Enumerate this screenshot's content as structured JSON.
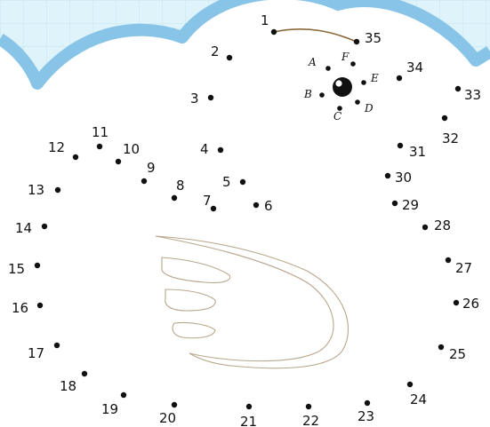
{
  "colors": {
    "grid_background": "#dff3fb",
    "grid_line": "#c3e6f3",
    "cloud_border": "#88c4e7",
    "dot": "#111111",
    "connect_line": "#8a6a3c",
    "outline": "#b8a78c"
  },
  "icons": {
    "eye": "eye-icon",
    "wing": "wing-outline-icon"
  },
  "puzzle": {
    "dots": [
      {
        "label": "1"
      },
      {
        "label": "2"
      },
      {
        "label": "3"
      },
      {
        "label": "4"
      },
      {
        "label": "5"
      },
      {
        "label": "6"
      },
      {
        "label": "7"
      },
      {
        "label": "8"
      },
      {
        "label": "9"
      },
      {
        "label": "10"
      },
      {
        "label": "11"
      },
      {
        "label": "12"
      },
      {
        "label": "13"
      },
      {
        "label": "14"
      },
      {
        "label": "15"
      },
      {
        "label": "16"
      },
      {
        "label": "17"
      },
      {
        "label": "18"
      },
      {
        "label": "19"
      },
      {
        "label": "20"
      },
      {
        "label": "21"
      },
      {
        "label": "22"
      },
      {
        "label": "23"
      },
      {
        "label": "24"
      },
      {
        "label": "25"
      },
      {
        "label": "26"
      },
      {
        "label": "27"
      },
      {
        "label": "28"
      },
      {
        "label": "29"
      },
      {
        "label": "30"
      },
      {
        "label": "31"
      },
      {
        "label": "32"
      },
      {
        "label": "33"
      },
      {
        "label": "34"
      },
      {
        "label": "35"
      }
    ],
    "letter_dots": [
      {
        "label": "A"
      },
      {
        "label": "F"
      },
      {
        "label": "E"
      },
      {
        "label": "B"
      },
      {
        "label": "C"
      },
      {
        "label": "D"
      }
    ]
  }
}
